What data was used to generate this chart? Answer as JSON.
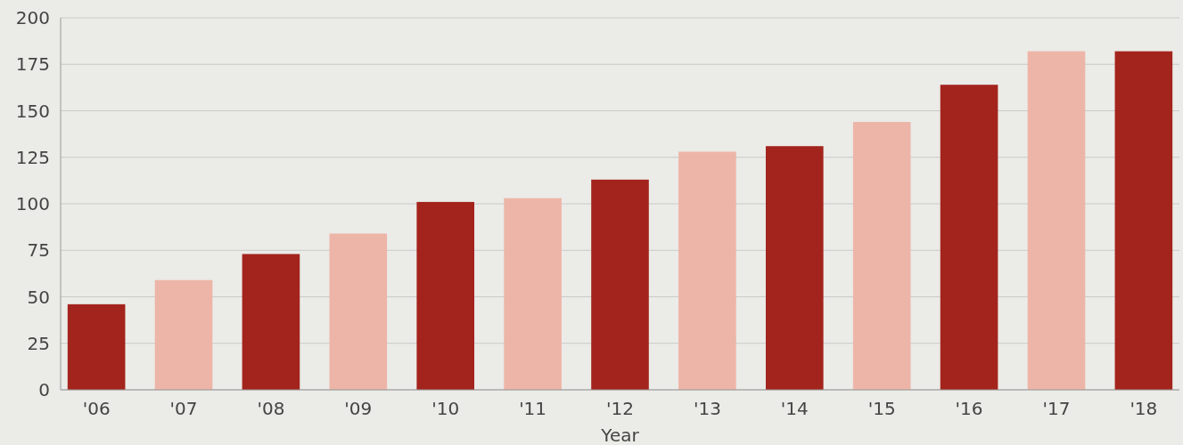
{
  "chart_data": {
    "type": "bar",
    "xlabel": "Year",
    "categories": [
      "'06",
      "'07",
      "'08",
      "'09",
      "'10",
      "'11",
      "'12",
      "'13",
      "'14",
      "'15",
      "'16",
      "'17",
      "'18"
    ],
    "values": [
      46,
      59,
      73,
      84,
      101,
      103,
      113,
      128,
      131,
      144,
      164,
      182,
      182
    ],
    "colors": [
      "#a3241c",
      "#edb5a8",
      "#a3241c",
      "#edb5a8",
      "#a3241c",
      "#edb5a8",
      "#a3241c",
      "#edb5a8",
      "#a3241c",
      "#edb5a8",
      "#a3241c",
      "#edb5a8",
      "#a3241c"
    ],
    "ylim": [
      0,
      200
    ],
    "yticks": [
      0,
      25,
      50,
      75,
      100,
      125,
      150,
      175,
      200
    ],
    "grid": "y"
  }
}
